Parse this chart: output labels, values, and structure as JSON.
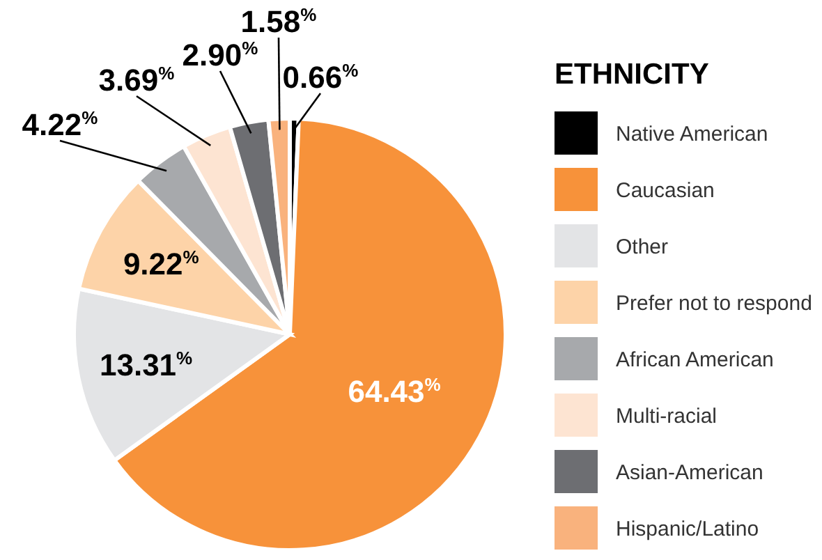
{
  "chart_data": {
    "type": "pie",
    "legend_title": "ETHNICITY",
    "legend": "right",
    "categories": [
      "Native American",
      "Caucasian",
      "Other",
      "Prefer not to respond",
      "African American",
      "Multi-racial",
      "Asian-American",
      "Hispanic/Latino"
    ],
    "values": [
      0.66,
      64.43,
      13.31,
      9.22,
      4.22,
      3.69,
      2.9,
      1.58
    ],
    "colors": [
      "#000000",
      "#f7923a",
      "#e3e4e6",
      "#fdd3a8",
      "#a7a9ac",
      "#fde4d2",
      "#6d6e72",
      "#f9b27d"
    ],
    "value_labels": [
      "0.66$^{%}$",
      "64.43$^{%}$",
      "13.31$^{%}$",
      "9.22$^{%}$",
      "4.22$^{%}$",
      "3.69$^{%}$",
      "2.90$^{%}$",
      "1.58$^{%}$"
    ]
  }
}
